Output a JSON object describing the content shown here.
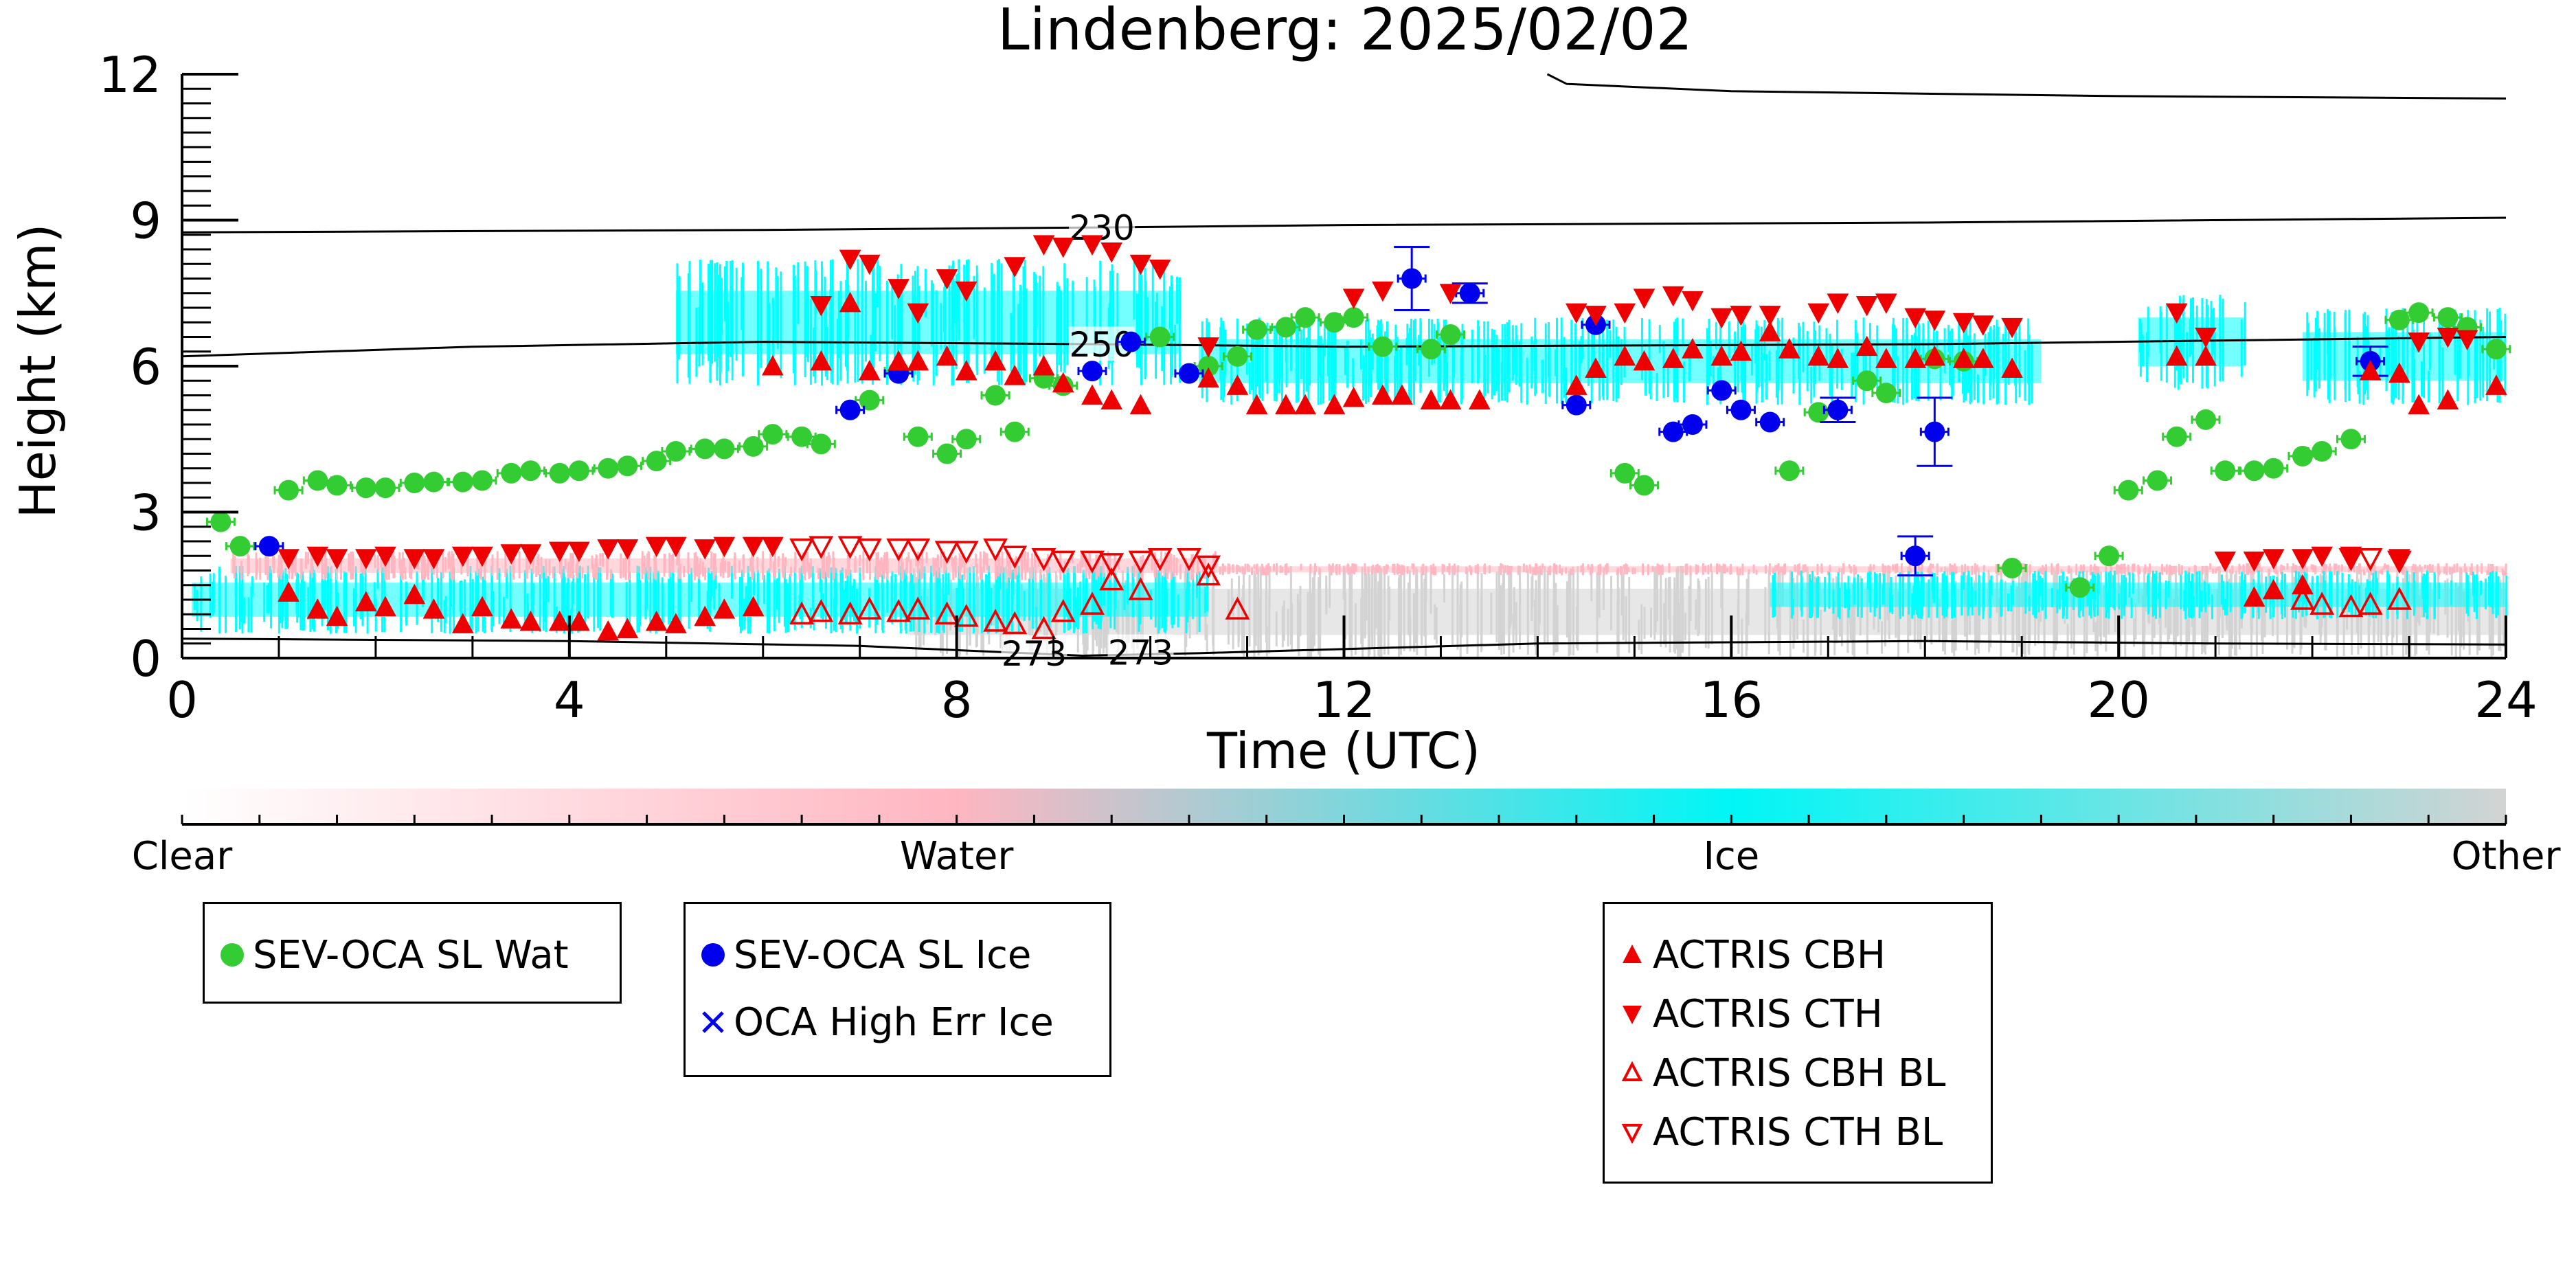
{
  "chart_data": {
    "type": "scatter",
    "title": "Lindenberg: 2025/02/02",
    "xlabel": "Time (UTC)",
    "ylabel": "Height (km)",
    "xlim": [
      0,
      24
    ],
    "ylim": [
      0,
      12
    ],
    "x_ticks": [
      "0",
      "4",
      "8",
      "12",
      "16",
      "20",
      "24"
    ],
    "y_ticks": [
      "0",
      "3",
      "6",
      "9",
      "12"
    ],
    "grid": false,
    "colorbar": {
      "labels": [
        "Clear",
        "Water",
        "Ice",
        "Other"
      ],
      "colors": [
        "#ffffff",
        "#ffb6c1",
        "#00ffff",
        "#d3d3d3"
      ]
    },
    "contours": [
      {
        "label": "230",
        "points": [
          [
            0,
            8.75
          ],
          [
            6,
            8.8
          ],
          [
            9.5,
            8.85
          ],
          [
            12,
            8.9
          ],
          [
            18,
            8.95
          ],
          [
            24,
            9.05
          ]
        ]
      },
      {
        "label": "250",
        "points": [
          [
            0,
            6.2
          ],
          [
            3,
            6.4
          ],
          [
            6,
            6.5
          ],
          [
            9.5,
            6.45
          ],
          [
            12,
            6.4
          ],
          [
            18,
            6.45
          ],
          [
            24,
            6.6
          ]
        ]
      },
      {
        "label": "273",
        "points": [
          [
            0,
            0.4
          ],
          [
            4,
            0.35
          ],
          [
            7,
            0.25
          ],
          [
            8.5,
            0.12
          ],
          [
            9.3,
            0.05
          ],
          [
            10.5,
            0.1
          ],
          [
            14,
            0.3
          ],
          [
            18,
            0.35
          ],
          [
            21,
            0.3
          ],
          [
            24,
            0.28
          ]
        ]
      },
      {
        "label": "",
        "points": [
          [
            14.1,
            12.0
          ],
          [
            14.3,
            11.8
          ],
          [
            16,
            11.65
          ],
          [
            20,
            11.55
          ],
          [
            24,
            11.5
          ]
        ]
      }
    ],
    "contour_labels": [
      "230",
      "250",
      "273",
      "273"
    ],
    "cloud_regions": [
      {
        "class": "Other",
        "t0": 7.5,
        "t1": 24,
        "z0": 0,
        "z1": 1.9
      },
      {
        "class": "Ice",
        "t0": 0.1,
        "t1": 10.6,
        "z0": 0.5,
        "z1": 1.9
      },
      {
        "class": "Water",
        "t0": 0.5,
        "t1": 10.7,
        "z0": 1.6,
        "z1": 2.2
      },
      {
        "class": "Water",
        "t0": 10.7,
        "t1": 24,
        "z0": 1.7,
        "z1": 1.95
      },
      {
        "class": "Ice",
        "t0": 5.1,
        "t1": 10.3,
        "z0": 5.6,
        "z1": 8.2
      },
      {
        "class": "Ice",
        "t0": 10.5,
        "t1": 19.2,
        "z0": 5.2,
        "z1": 7.0
      },
      {
        "class": "Ice",
        "t0": 20.2,
        "t1": 21.3,
        "z0": 5.5,
        "z1": 7.5
      },
      {
        "class": "Ice",
        "t0": 21.9,
        "t1": 24,
        "z0": 5.2,
        "z1": 7.2
      },
      {
        "class": "Ice",
        "t0": 16.4,
        "t1": 24,
        "z0": 0.8,
        "z1": 1.8
      }
    ],
    "series": [
      {
        "name": "SEV-OCA SL Wat",
        "marker": "circle",
        "color": "#33cc33",
        "x": [
          0.4,
          0.6,
          1.1,
          1.4,
          1.6,
          1.9,
          2.1,
          2.4,
          2.6,
          2.9,
          3.1,
          3.4,
          3.6,
          3.9,
          4.1,
          4.4,
          4.6,
          4.9,
          5.1,
          5.4,
          5.6,
          5.9,
          6.1,
          6.4,
          6.6,
          7.1,
          7.4,
          7.6,
          7.9,
          8.1,
          8.4,
          8.6,
          8.9,
          9.1,
          10.1,
          10.6,
          10.9,
          11.1,
          11.4,
          11.6,
          11.9,
          12.1,
          12.4,
          12.9,
          13.1,
          14.9,
          15.1,
          16.6,
          16.9,
          17.4,
          17.6,
          18.1,
          18.4,
          18.9,
          19.6,
          19.9,
          20.1,
          20.4,
          20.6,
          20.9,
          21.1,
          21.4,
          21.6,
          21.9,
          22.1,
          22.4,
          22.9,
          23.1,
          23.4,
          23.6,
          23.9
        ],
        "y": [
          2.8,
          2.3,
          3.45,
          3.65,
          3.55,
          3.5,
          3.5,
          3.6,
          3.62,
          3.62,
          3.65,
          3.8,
          3.85,
          3.8,
          3.85,
          3.9,
          3.95,
          4.05,
          4.25,
          4.3,
          4.3,
          4.35,
          4.6,
          4.55,
          4.4,
          5.3,
          5.9,
          4.55,
          4.2,
          4.5,
          5.4,
          4.65,
          5.75,
          5.6,
          6.6,
          6.0,
          6.2,
          6.75,
          6.8,
          7.0,
          6.9,
          7.0,
          6.4,
          6.35,
          6.65,
          3.8,
          3.55,
          3.85,
          5.05,
          5.7,
          5.45,
          6.15,
          6.1,
          1.85,
          1.45,
          2.1,
          3.45,
          3.65,
          4.55,
          4.9,
          3.85,
          3.85,
          3.9,
          4.15,
          4.25,
          4.5,
          6.95,
          7.1,
          7.0,
          6.8,
          6.35
        ]
      },
      {
        "name": "SEV-OCA SL Ice",
        "marker": "circle",
        "color": "#0000ee",
        "x": [
          0.9,
          6.9,
          7.4,
          9.4,
          9.8,
          10.4,
          12.7,
          13.3,
          14.4,
          14.6,
          15.4,
          15.6,
          15.9,
          16.1,
          16.4,
          17.1,
          17.9,
          18.1,
          22.6
        ],
        "y": [
          2.3,
          5.1,
          5.85,
          5.9,
          6.5,
          5.85,
          7.8,
          7.5,
          5.2,
          6.85,
          4.65,
          4.8,
          5.5,
          5.1,
          4.85,
          5.1,
          2.1,
          4.65,
          6.1
        ],
        "err": [
          0.1,
          0.1,
          0.1,
          0.1,
          0.1,
          0.1,
          0.65,
          0.2,
          0.1,
          0.1,
          0.1,
          0.1,
          0.1,
          0.1,
          0.1,
          0.25,
          0.4,
          0.7,
          0.3
        ]
      },
      {
        "name": "OCA High Err Ice",
        "marker": "x",
        "color": "#0000ee",
        "x": [],
        "y": []
      },
      {
        "name": "ACTRIS CBH",
        "marker": "triangle-up",
        "color": "#ee0000",
        "filled": true,
        "x": [
          1.1,
          1.4,
          1.6,
          1.9,
          2.1,
          2.4,
          2.6,
          2.9,
          3.1,
          3.4,
          3.6,
          3.9,
          4.1,
          4.4,
          4.6,
          4.9,
          5.1,
          5.4,
          5.6,
          5.9,
          6.1,
          6.6,
          6.9,
          7.1,
          7.4,
          7.6,
          7.9,
          8.1,
          8.4,
          8.6,
          8.9,
          9.1,
          9.4,
          9.6,
          9.9,
          10.6,
          10.9,
          11.1,
          11.4,
          11.6,
          11.9,
          12.1,
          12.4,
          12.6,
          12.9,
          13.1,
          13.4,
          14.4,
          14.6,
          14.9,
          15.1,
          15.4,
          15.6,
          15.9,
          16.1,
          16.4,
          16.6,
          16.9,
          17.1,
          17.4,
          17.6,
          17.9,
          18.1,
          18.4,
          18.6,
          18.9,
          20.6,
          20.9,
          21.4,
          21.6,
          21.9,
          22.6,
          22.9,
          23.1,
          23.4,
          23.9
        ],
        "y": [
          1.35,
          1.0,
          0.85,
          1.15,
          1.05,
          1.3,
          1.0,
          0.7,
          1.05,
          0.8,
          0.75,
          0.75,
          0.75,
          0.55,
          0.6,
          0.75,
          0.7,
          0.85,
          1.0,
          1.05,
          6.0,
          6.1,
          7.3,
          5.9,
          6.1,
          6.1,
          6.2,
          5.9,
          6.1,
          5.8,
          6.0,
          5.65,
          5.4,
          5.3,
          5.2,
          5.75,
          5.6,
          5.2,
          5.2,
          5.2,
          5.2,
          5.35,
          5.4,
          5.4,
          5.3,
          5.3,
          5.3,
          5.6,
          5.95,
          6.2,
          6.1,
          6.15,
          6.35,
          6.2,
          6.3,
          6.7,
          6.35,
          6.2,
          6.15,
          6.4,
          6.15,
          6.15,
          6.2,
          6.15,
          6.15,
          5.95,
          6.2,
          6.2,
          1.25,
          1.4,
          1.5,
          5.9,
          5.85,
          5.2,
          5.3,
          5.6
        ]
      },
      {
        "name": "ACTRIS CTH",
        "marker": "triangle-down",
        "color": "#ee0000",
        "filled": true,
        "x": [
          1.1,
          1.4,
          1.6,
          1.9,
          2.1,
          2.4,
          2.6,
          2.9,
          3.1,
          3.4,
          3.6,
          3.9,
          4.1,
          4.4,
          4.6,
          4.9,
          5.1,
          5.4,
          5.6,
          5.9,
          6.1,
          6.6,
          6.9,
          7.1,
          7.4,
          7.6,
          7.9,
          8.1,
          8.6,
          8.9,
          9.1,
          9.4,
          9.6,
          9.9,
          10.1,
          10.6,
          12.1,
          12.4,
          13.1,
          14.4,
          14.6,
          14.9,
          15.1,
          15.4,
          15.6,
          15.9,
          16.1,
          16.4,
          16.9,
          17.1,
          17.4,
          17.6,
          17.9,
          18.1,
          18.4,
          18.6,
          18.9,
          20.6,
          20.9,
          21.1,
          21.4,
          21.6,
          21.9,
          22.1,
          22.4,
          22.9,
          23.1,
          23.4,
          23.6
        ],
        "y": [
          2.05,
          2.1,
          2.05,
          2.05,
          2.1,
          2.05,
          2.05,
          2.1,
          2.1,
          2.15,
          2.15,
          2.2,
          2.2,
          2.25,
          2.25,
          2.3,
          2.3,
          2.25,
          2.3,
          2.3,
          2.3,
          7.25,
          8.2,
          8.1,
          7.6,
          7.1,
          7.8,
          7.55,
          8.05,
          8.5,
          8.45,
          8.5,
          8.35,
          8.1,
          8.0,
          6.4,
          7.4,
          7.55,
          7.5,
          7.1,
          7.05,
          7.1,
          7.4,
          7.45,
          7.35,
          7.0,
          7.05,
          7.05,
          7.1,
          7.3,
          7.25,
          7.3,
          7.0,
          6.95,
          6.9,
          6.85,
          6.8,
          7.1,
          6.6,
          2.0,
          2.0,
          2.05,
          2.05,
          2.1,
          2.1,
          2.05,
          6.5,
          6.6,
          6.55
        ]
      },
      {
        "name": "ACTRIS CBH BL",
        "marker": "triangle-up",
        "color": "#ee0000",
        "filled": false,
        "x": [
          6.4,
          6.6,
          6.9,
          7.1,
          7.4,
          7.6,
          7.9,
          8.1,
          8.4,
          8.6,
          8.9,
          9.1,
          9.4,
          9.6,
          9.9,
          10.6,
          10.9,
          21.9,
          22.1,
          22.4,
          22.6,
          22.9
        ],
        "y": [
          0.9,
          0.95,
          0.9,
          1.0,
          0.95,
          1.0,
          0.9,
          0.85,
          0.75,
          0.7,
          0.6,
          0.95,
          1.1,
          1.6,
          1.4,
          1.7,
          1.0,
          1.2,
          1.1,
          1.05,
          1.1,
          1.2
        ]
      },
      {
        "name": "ACTRIS CTH BL",
        "marker": "triangle-down",
        "color": "#ee0000",
        "filled": false,
        "x": [
          6.4,
          6.6,
          6.9,
          7.1,
          7.4,
          7.6,
          7.9,
          8.1,
          8.4,
          8.6,
          8.9,
          9.1,
          9.4,
          9.6,
          9.9,
          10.1,
          10.4,
          10.6,
          22.4,
          22.6,
          22.9
        ],
        "y": [
          2.25,
          2.3,
          2.3,
          2.25,
          2.25,
          2.25,
          2.2,
          2.2,
          2.25,
          2.1,
          2.05,
          2.0,
          2.0,
          1.95,
          2.0,
          2.05,
          2.05,
          1.9,
          2.05,
          2.05,
          2.0
        ]
      }
    ],
    "legends": [
      {
        "entries": [
          "SEV-OCA SL Wat"
        ]
      },
      {
        "entries": [
          "SEV-OCA SL Ice",
          "OCA High Err Ice"
        ]
      },
      {
        "entries": [
          "ACTRIS CBH",
          "ACTRIS CTH",
          "ACTRIS CBH BL",
          "ACTRIS CTH BL"
        ]
      }
    ]
  }
}
